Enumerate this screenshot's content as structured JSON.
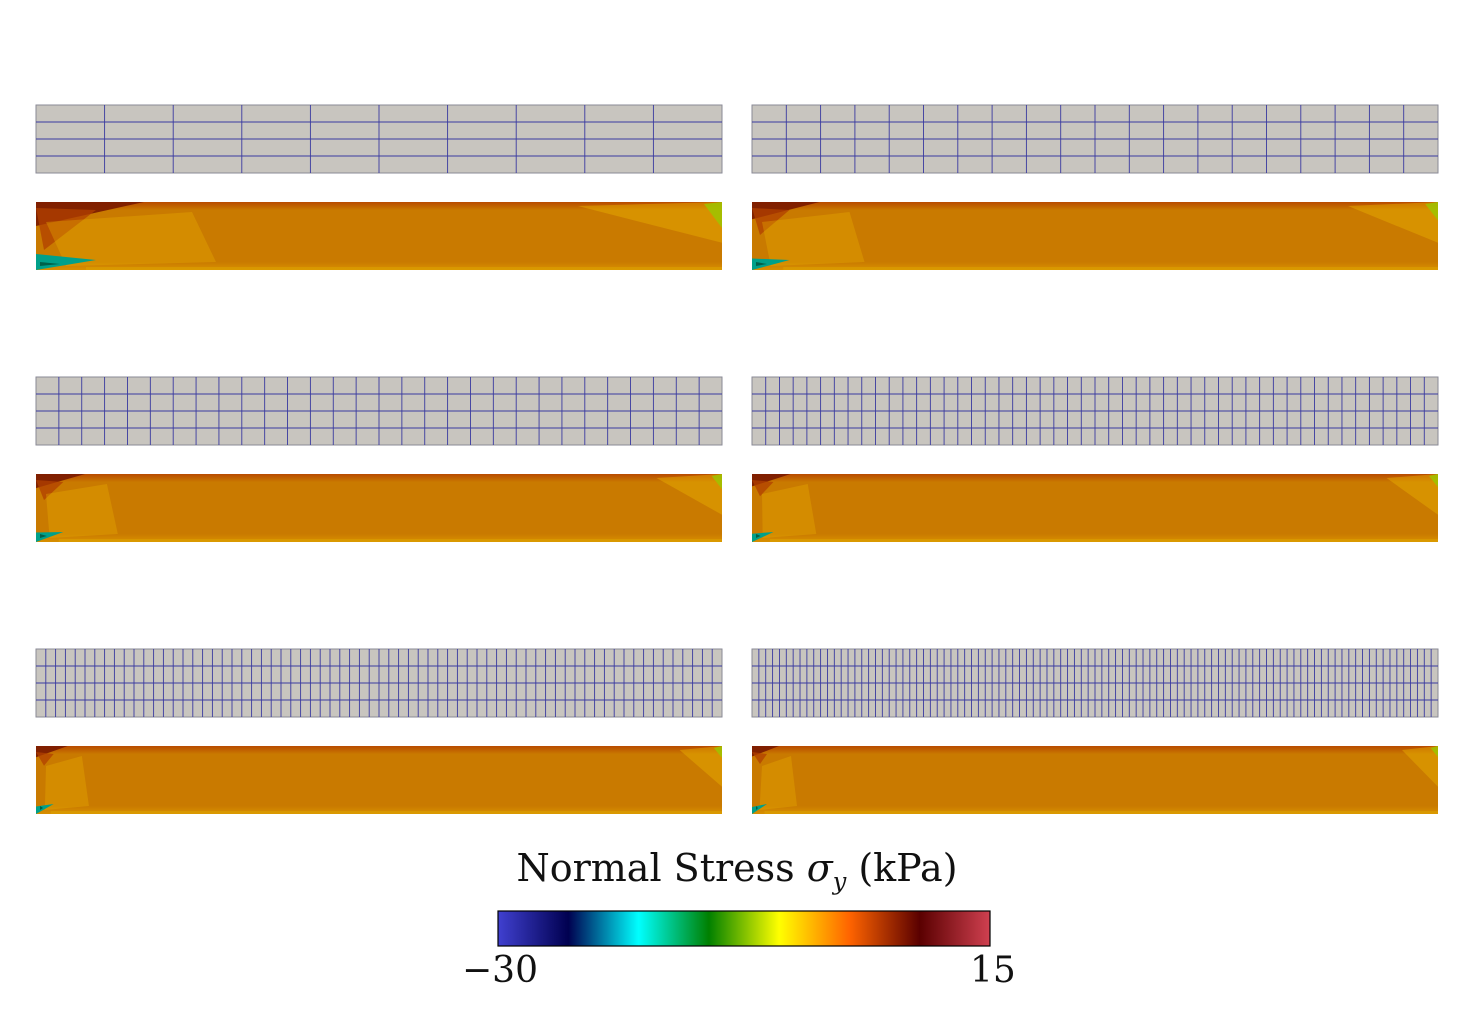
{
  "legend": {
    "label_prefix": "Normal Stress ",
    "symbol": "σ",
    "subscript": "y",
    "unit": " (kPa)",
    "min_label": "−30",
    "max_label": "15",
    "min_value": -30,
    "max_value": 15,
    "colormap_stops": [
      "#4040d0",
      "#000050",
      "#00ffff",
      "#008000",
      "#ffff00",
      "#ff6400",
      "#5a0000",
      "#d04050"
    ]
  },
  "mesh_colors": {
    "fill": "#c8c5bf",
    "line": "#3a3aa0"
  },
  "stress_colors": {
    "base": "#c97a00",
    "hot": "#7a1a00",
    "low": "#00a08a",
    "mid": "#e8b000"
  },
  "panels": [
    {
      "id": "mesh-1",
      "columns": 10,
      "rows": 4
    },
    {
      "id": "mesh-2",
      "columns": 20,
      "rows": 4
    },
    {
      "id": "mesh-3",
      "columns": 30,
      "rows": 4
    },
    {
      "id": "mesh-4",
      "columns": 50,
      "rows": 4
    },
    {
      "id": "mesh-5",
      "columns": 70,
      "rows": 4
    },
    {
      "id": "mesh-6",
      "columns": 100,
      "rows": 4
    }
  ]
}
